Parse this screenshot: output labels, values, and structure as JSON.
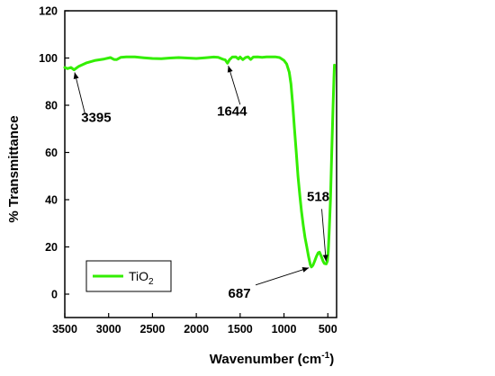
{
  "chart_data": {
    "type": "line",
    "xlabel": "Wavenumber (cm",
    "xlabel_sup": "-1",
    "xlabel_end": ")",
    "ylabel": "% Transmittance",
    "xlim": [
      3500,
      400
    ],
    "ylim": [
      0,
      120
    ],
    "x_ticks": [
      3500,
      3000,
      2500,
      2000,
      1500,
      1000,
      500
    ],
    "y_ticks": [
      0,
      20,
      40,
      60,
      80,
      100,
      120
    ],
    "legend": {
      "position": "bottom-left",
      "label_main": "TiO",
      "label_sub": "2"
    },
    "series": [
      {
        "name": "TiO2",
        "color": "#33ee00",
        "points": [
          [
            3500,
            96
          ],
          [
            3470,
            95.5
          ],
          [
            3430,
            96
          ],
          [
            3395,
            95
          ],
          [
            3340,
            96.5
          ],
          [
            3250,
            98
          ],
          [
            3150,
            99
          ],
          [
            3050,
            99.6
          ],
          [
            2980,
            100.2
          ],
          [
            2940,
            99.4
          ],
          [
            2910,
            99.3
          ],
          [
            2860,
            100.3
          ],
          [
            2800,
            100.5
          ],
          [
            2700,
            100.5
          ],
          [
            2600,
            100.1
          ],
          [
            2500,
            99.8
          ],
          [
            2400,
            99.7
          ],
          [
            2300,
            100
          ],
          [
            2200,
            100.2
          ],
          [
            2100,
            100
          ],
          [
            2000,
            99.8
          ],
          [
            1900,
            100.1
          ],
          [
            1800,
            100.4
          ],
          [
            1750,
            100.3
          ],
          [
            1700,
            99.5
          ],
          [
            1670,
            99.2
          ],
          [
            1644,
            97.8
          ],
          [
            1620,
            99.3
          ],
          [
            1590,
            100.4
          ],
          [
            1550,
            100.5
          ],
          [
            1520,
            99.6
          ],
          [
            1500,
            100.4
          ],
          [
            1470,
            99.3
          ],
          [
            1440,
            100.2
          ],
          [
            1410,
            100.5
          ],
          [
            1380,
            99.4
          ],
          [
            1350,
            100.4
          ],
          [
            1300,
            100.5
          ],
          [
            1250,
            100.3
          ],
          [
            1200,
            100.5
          ],
          [
            1100,
            100.5
          ],
          [
            1050,
            100.2
          ],
          [
            1000,
            99
          ],
          [
            970,
            97.5
          ],
          [
            940,
            94
          ],
          [
            920,
            89
          ],
          [
            900,
            80
          ],
          [
            880,
            70
          ],
          [
            860,
            60
          ],
          [
            840,
            50
          ],
          [
            820,
            42
          ],
          [
            800,
            35
          ],
          [
            780,
            29
          ],
          [
            760,
            24
          ],
          [
            740,
            20
          ],
          [
            720,
            16
          ],
          [
            700,
            12.5
          ],
          [
            687,
            11.5
          ],
          [
            670,
            12.2
          ],
          [
            650,
            14
          ],
          [
            630,
            16
          ],
          [
            610,
            17.5
          ],
          [
            595,
            17.8
          ],
          [
            575,
            16
          ],
          [
            555,
            14
          ],
          [
            540,
            13
          ],
          [
            518,
            12.8
          ],
          [
            505,
            14
          ],
          [
            495,
            18
          ],
          [
            485,
            26
          ],
          [
            470,
            40
          ],
          [
            455,
            60
          ],
          [
            440,
            80
          ],
          [
            430,
            92
          ],
          [
            425,
            97
          ]
        ]
      }
    ],
    "annotations": [
      {
        "label": "3395",
        "x": 3395,
        "y": 95
      },
      {
        "label": "1644",
        "x": 1644,
        "y": 97.8
      },
      {
        "label": "687",
        "x": 687,
        "y": 11.5
      },
      {
        "label": "518",
        "x": 518,
        "y": 12.8
      }
    ]
  }
}
